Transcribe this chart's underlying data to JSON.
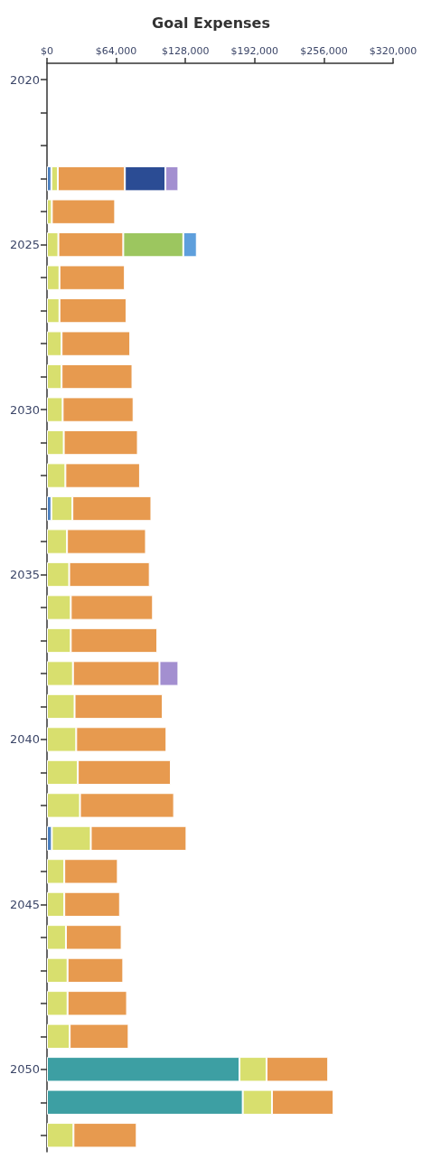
{
  "chart_data": {
    "type": "bar",
    "title": "Goal Expenses",
    "stacked": true,
    "orientation": "horizontal",
    "categories": [
      "2020",
      null,
      null,
      null,
      null,
      "2025",
      null,
      null,
      null,
      null,
      "2030",
      null,
      null,
      null,
      null,
      "2035",
      null,
      null,
      null,
      null,
      "2040",
      null,
      null,
      null,
      null,
      "2045",
      null,
      null,
      null,
      null,
      "2050",
      null,
      null
    ],
    "series": [
      {
        "color": "#3d9fa3",
        "values": [
          null,
          null,
          null,
          null,
          null,
          null,
          null,
          null,
          null,
          null,
          null,
          null,
          null,
          null,
          null,
          null,
          null,
          null,
          null,
          null,
          null,
          null,
          null,
          null,
          null,
          null,
          null,
          null,
          null,
          null,
          178000,
          181000,
          null
        ]
      },
      {
        "color": "#4a7fc0",
        "values": [
          null,
          null,
          null,
          4000,
          null,
          null,
          null,
          null,
          null,
          null,
          null,
          null,
          null,
          4000,
          null,
          null,
          null,
          null,
          null,
          null,
          null,
          null,
          null,
          4500,
          null,
          null,
          null,
          null,
          null,
          null,
          null,
          null,
          null
        ]
      },
      {
        "color": "#d8df6e",
        "values": [
          null,
          null,
          null,
          6000,
          4500,
          10500,
          11500,
          11500,
          13500,
          13500,
          14500,
          15500,
          17000,
          19500,
          18500,
          20500,
          22000,
          22000,
          24000,
          25500,
          27000,
          28500,
          30500,
          36000,
          16000,
          16000,
          17500,
          19000,
          19000,
          21000,
          25000,
          27000,
          24500
        ]
      },
      {
        "color": "#e79a4f",
        "values": [
          null,
          null,
          null,
          62000,
          58500,
          60000,
          60500,
          62000,
          63500,
          65500,
          65500,
          68500,
          69000,
          73000,
          73000,
          74500,
          76000,
          80000,
          80000,
          81500,
          83500,
          86000,
          87000,
          88500,
          49500,
          51500,
          51500,
          51500,
          55000,
          54500,
          57000,
          57000,
          58500
        ]
      },
      {
        "color": "#2b4c94",
        "values": [
          null,
          null,
          null,
          37500,
          null,
          null,
          null,
          null,
          null,
          null,
          null,
          null,
          null,
          null,
          null,
          null,
          null,
          null,
          null,
          null,
          null,
          null,
          null,
          null,
          null,
          null,
          null,
          null,
          null,
          null,
          null,
          null,
          null
        ]
      },
      {
        "color": "#9cc65f",
        "values": [
          null,
          null,
          null,
          null,
          null,
          55500,
          null,
          null,
          null,
          null,
          null,
          null,
          null,
          null,
          null,
          null,
          null,
          null,
          null,
          null,
          null,
          null,
          null,
          null,
          null,
          null,
          null,
          null,
          null,
          null,
          null,
          null,
          null
        ]
      },
      {
        "color": "#a38fd0",
        "values": [
          null,
          null,
          null,
          12000,
          null,
          null,
          null,
          null,
          null,
          null,
          null,
          null,
          null,
          null,
          null,
          null,
          null,
          null,
          17500,
          null,
          null,
          null,
          null,
          null,
          null,
          null,
          null,
          null,
          null,
          null,
          null,
          null,
          null
        ]
      },
      {
        "color": "#5e9fdc",
        "values": [
          null,
          null,
          null,
          null,
          null,
          12500,
          null,
          null,
          null,
          null,
          null,
          null,
          null,
          null,
          null,
          null,
          null,
          null,
          null,
          null,
          null,
          null,
          null,
          null,
          null,
          null,
          null,
          null,
          null,
          null,
          null,
          null,
          null
        ]
      }
    ],
    "xlim": [
      0,
      320000
    ],
    "xticks": [
      {
        "value": 0,
        "label": "$0"
      },
      {
        "value": 64000,
        "label": "$64,000"
      },
      {
        "value": 128000,
        "label": "$128,000"
      },
      {
        "value": 192000,
        "label": "$192,000"
      },
      {
        "value": 256000,
        "label": "$256,000"
      },
      {
        "value": 320000,
        "label": "$320,000"
      }
    ],
    "grid": false
  }
}
